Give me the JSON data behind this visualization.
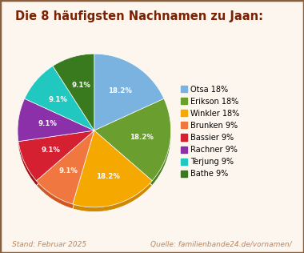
{
  "title": "Die 8 häufigsten Nachnamen zu Jaan:",
  "labels": [
    "Otsa",
    "Erikson",
    "Winkler",
    "Brunken",
    "Bassier",
    "Rachner",
    "Terjung",
    "Bathe"
  ],
  "legend_labels": [
    "Otsa 18%",
    "Erikson 18%",
    "Winkler 18%",
    "Brunken 9%",
    "Bassier 9%",
    "Rachner 9%",
    "Terjung 9%",
    "Bathe 9%"
  ],
  "values": [
    18.2,
    18.2,
    18.2,
    9.1,
    9.1,
    9.1,
    9.1,
    9.1
  ],
  "colors": [
    "#7ab3e0",
    "#6a9e2f",
    "#f5a800",
    "#f07840",
    "#d42030",
    "#8b30a8",
    "#20c8c0",
    "#3a7a1e"
  ],
  "shadow_colors": [
    "#5a90c0",
    "#4a7e1f",
    "#d08800",
    "#d05820",
    "#a01010",
    "#6b1888",
    "#10a8a0",
    "#1a5a0e"
  ],
  "autopct_values": [
    "18.2%",
    "18.2%",
    "18.2%",
    "9.1%",
    "9.1%",
    "9.1%",
    "9.1%",
    "9.1%"
  ],
  "title_color": "#7b2000",
  "footer_left": "Stand: Februar 2025",
  "footer_right": "Quelle: familienbande24.de/vornamen/",
  "footer_color": "#c0845a",
  "background_color": "#fdf6ee",
  "border_color": "#8b5e3c",
  "startangle": 90
}
